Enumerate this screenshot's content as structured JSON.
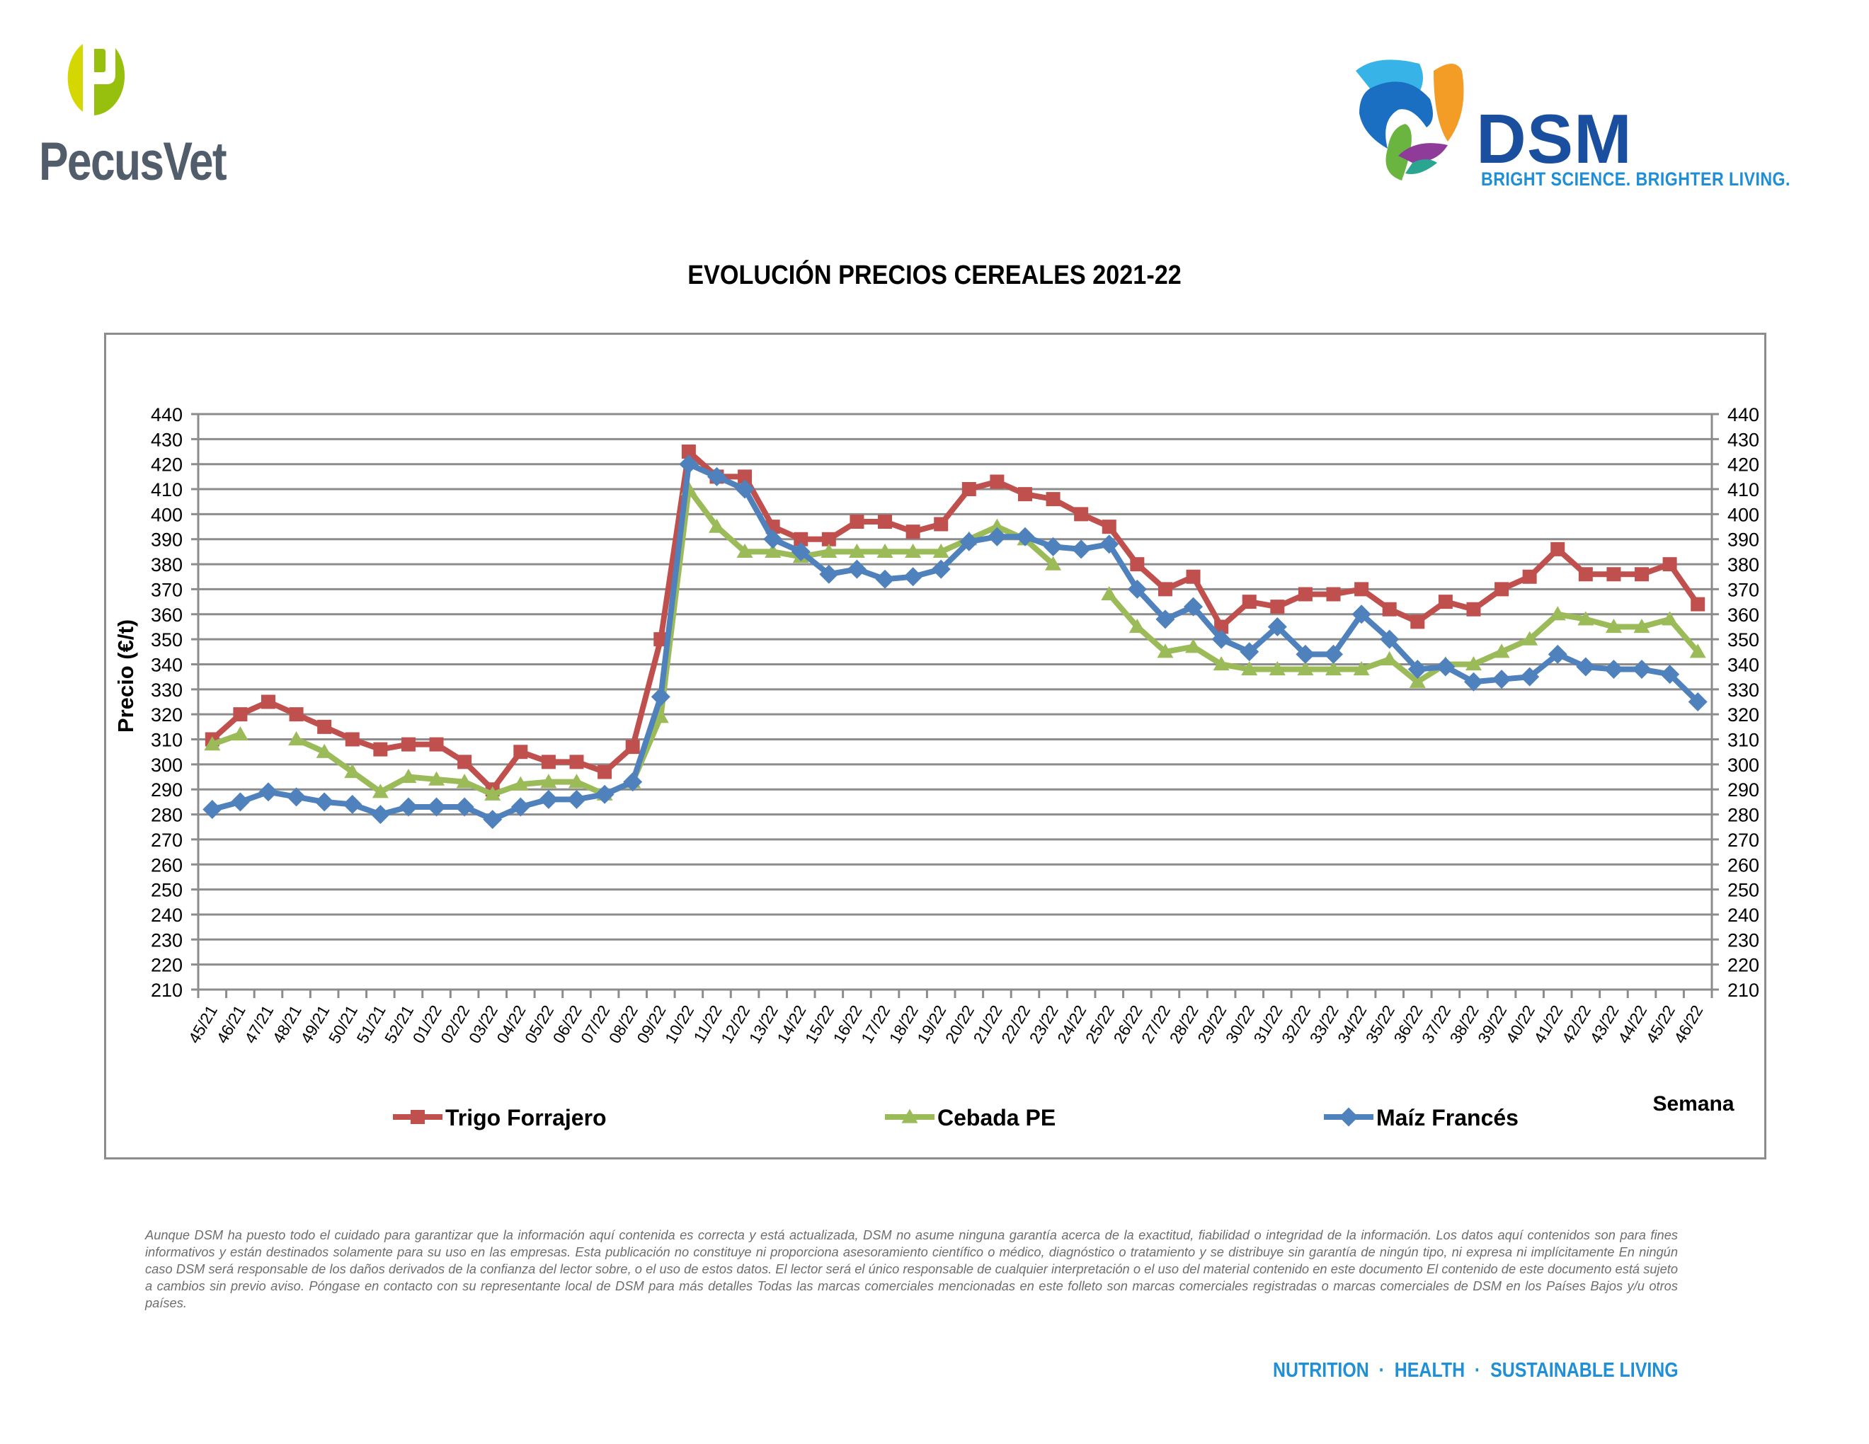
{
  "header": {
    "left_logo_text": "PecusVet",
    "right_logo_text": "DSM",
    "right_logo_tagline": "BRIGHT SCIENCE. BRIGHTER LIVING."
  },
  "colors": {
    "trigo": "#c0504d",
    "cebada": "#9bbb59",
    "maiz": "#4f81bd",
    "grid": "#8c8c8c",
    "dsm_blue": "#1a4fa0",
    "dsm_light_blue": "#1e8fd6",
    "pecus_gray": "#525d6b"
  },
  "chart_data": {
    "type": "line",
    "title": "EVOLUCIÓN PRECIOS CEREALES 2021-22",
    "xlabel": "Semana",
    "ylabel": "Precio (€/t)",
    "ylim": [
      210,
      440
    ],
    "ytick_step": 10,
    "yticks": [
      "440",
      "430",
      "420",
      "410",
      "400",
      "390",
      "380",
      "370",
      "360",
      "350",
      "340",
      "330",
      "320",
      "310",
      "300",
      "290",
      "280",
      "270",
      "260",
      "250",
      "240",
      "230",
      "220",
      "210"
    ],
    "grid": true,
    "legend_position": "bottom",
    "categories": [
      "45/21",
      "46/21",
      "47/21",
      "48/21",
      "49/21",
      "50/21",
      "51/21",
      "52/21",
      "01/22",
      "02/22",
      "03/22",
      "04/22",
      "05/22",
      "06/22",
      "07/22",
      "08/22",
      "09/22",
      "10/22",
      "11/22",
      "12/22",
      "13/22",
      "14/22",
      "15/22",
      "16/22",
      "17/22",
      "18/22",
      "19/22",
      "20/22",
      "21/22",
      "22/22",
      "23/22",
      "24/22",
      "25/22",
      "26/22",
      "27/22",
      "28/22",
      "29/22",
      "30/22",
      "31/22",
      "32/22",
      "33/22",
      "34/22",
      "35/22",
      "36/22",
      "37/22",
      "38/22",
      "39/22",
      "40/22",
      "41/22",
      "42/22",
      "43/22",
      "44/22",
      "45/22",
      "46/22"
    ],
    "series": [
      {
        "name": "Trigo Forrajero",
        "marker": "square",
        "color": "#c0504d",
        "values": [
          310,
          320,
          325,
          320,
          315,
          310,
          306,
          308,
          308,
          301,
          290,
          305,
          301,
          301,
          297,
          307,
          350,
          425,
          415,
          415,
          395,
          390,
          390,
          397,
          397,
          393,
          396,
          410,
          413,
          408,
          406,
          400,
          395,
          380,
          370,
          375,
          355,
          365,
          363,
          368,
          368,
          370,
          362,
          357,
          365,
          362,
          370,
          375,
          386,
          376,
          376,
          376,
          380,
          364
        ]
      },
      {
        "name": "Cebada PE",
        "marker": "triangle",
        "color": "#9bbb59",
        "values": [
          308,
          312,
          null,
          310,
          305,
          297,
          289,
          295,
          294,
          293,
          288,
          292,
          293,
          293,
          288,
          293,
          319,
          410,
          395,
          385,
          385,
          383,
          385,
          385,
          385,
          385,
          385,
          390,
          395,
          390,
          380,
          null,
          368,
          355,
          345,
          347,
          340,
          338,
          338,
          338,
          338,
          338,
          342,
          333,
          340,
          340,
          345,
          350,
          360,
          358,
          355,
          355,
          358,
          345
        ]
      },
      {
        "name": "Maíz Francés",
        "marker": "diamond",
        "color": "#4f81bd",
        "values": [
          282,
          285,
          289,
          287,
          285,
          284,
          280,
          283,
          283,
          283,
          278,
          283,
          286,
          286,
          288,
          293,
          327,
          420,
          415,
          410,
          390,
          385,
          376,
          378,
          374,
          375,
          378,
          389,
          391,
          391,
          387,
          386,
          388,
          370,
          358,
          363,
          350,
          345,
          355,
          344,
          344,
          360,
          350,
          338,
          339,
          333,
          334,
          335,
          344,
          339,
          338,
          338,
          336,
          325
        ]
      }
    ]
  },
  "disclaimer": "Aunque DSM ha puesto todo el cuidado para garantizar que la información aquí contenida es correcta y está actualizada, DSM no asume ninguna garantía acerca de la exactitud, fiabilidad o integridad de la información. Los datos aquí contenidos son para fines informativos y están destinados solamente para su uso en las empresas. Esta publicación no constituye ni proporciona asesoramiento científico o médico, diagnóstico o tratamiento y se distribuye sin garantía de ningún tipo, ni expresa ni implícitamente En ningún caso DSM será responsable de los daños derivados de la confianza del lector sobre, o el uso de estos datos. El lector será el único responsable de cualquier interpretación o el uso del material contenido en este documento El contenido de este documento está sujeto a cambios sin previo aviso. Póngase en contacto con su representante local de DSM para más detalles Todas las marcas comerciales mencionadas en este folleto son marcas comerciales registradas o marcas comerciales de DSM en los Países Bajos y/u otros países.",
  "footer": {
    "tagline": "NUTRITION  ·  HEALTH  ·  SUSTAINABLE LIVING"
  }
}
